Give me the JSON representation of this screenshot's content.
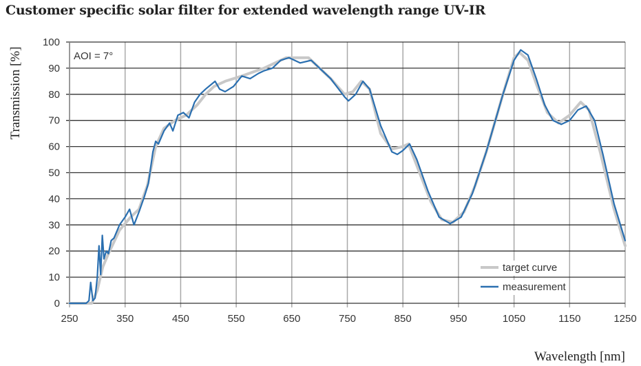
{
  "chart_data": {
    "type": "line",
    "title": "Customer specific solar filter for extended wavelength range UV-IR",
    "xlabel": "Wavelength [nm]",
    "ylabel": "Transmission [%]",
    "annotation": "AOI = 7°",
    "xlim": [
      250,
      1250
    ],
    "ylim": [
      0,
      100
    ],
    "xticks": [
      250,
      350,
      450,
      550,
      650,
      750,
      850,
      950,
      1050,
      1150,
      1250
    ],
    "yticks": [
      0,
      10,
      20,
      30,
      40,
      50,
      60,
      70,
      80,
      90,
      100
    ],
    "grid": true,
    "legend_position": "bottom-right",
    "series": [
      {
        "name": "target curve",
        "color": "#c8c8c8",
        "points": [
          [
            250,
            0
          ],
          [
            290,
            0
          ],
          [
            300,
            5
          ],
          [
            310,
            14
          ],
          [
            320,
            19
          ],
          [
            340,
            28
          ],
          [
            360,
            33
          ],
          [
            375,
            36
          ],
          [
            390,
            45
          ],
          [
            405,
            60
          ],
          [
            420,
            67
          ],
          [
            440,
            70
          ],
          [
            460,
            72
          ],
          [
            480,
            76
          ],
          [
            495,
            80
          ],
          [
            510,
            83
          ],
          [
            530,
            85
          ],
          [
            560,
            87
          ],
          [
            600,
            90
          ],
          [
            640,
            94
          ],
          [
            680,
            94
          ],
          [
            720,
            86
          ],
          [
            745,
            80
          ],
          [
            760,
            81
          ],
          [
            775,
            85
          ],
          [
            790,
            82
          ],
          [
            810,
            65
          ],
          [
            830,
            59
          ],
          [
            850,
            60
          ],
          [
            860,
            61
          ],
          [
            880,
            50
          ],
          [
            900,
            39
          ],
          [
            920,
            32
          ],
          [
            940,
            31
          ],
          [
            960,
            35
          ],
          [
            980,
            45
          ],
          [
            1000,
            58
          ],
          [
            1030,
            80
          ],
          [
            1050,
            94
          ],
          [
            1060,
            96
          ],
          [
            1075,
            93
          ],
          [
            1090,
            84
          ],
          [
            1110,
            73
          ],
          [
            1130,
            69
          ],
          [
            1150,
            72
          ],
          [
            1170,
            77
          ],
          [
            1185,
            74
          ],
          [
            1205,
            58
          ],
          [
            1230,
            36
          ],
          [
            1250,
            22
          ]
        ]
      },
      {
        "name": "measurement",
        "color": "#2a6fb0",
        "points": [
          [
            250,
            0
          ],
          [
            280,
            0
          ],
          [
            285,
            1
          ],
          [
            288,
            8
          ],
          [
            292,
            1
          ],
          [
            296,
            2
          ],
          [
            300,
            10
          ],
          [
            303,
            22
          ],
          [
            306,
            11
          ],
          [
            309,
            26
          ],
          [
            312,
            17
          ],
          [
            316,
            20
          ],
          [
            320,
            19
          ],
          [
            325,
            24
          ],
          [
            330,
            25
          ],
          [
            340,
            30
          ],
          [
            350,
            33
          ],
          [
            358,
            36
          ],
          [
            366,
            30
          ],
          [
            375,
            35
          ],
          [
            385,
            41
          ],
          [
            392,
            46
          ],
          [
            400,
            58
          ],
          [
            405,
            62
          ],
          [
            410,
            61
          ],
          [
            420,
            66
          ],
          [
            430,
            69
          ],
          [
            436,
            66
          ],
          [
            445,
            72
          ],
          [
            455,
            73
          ],
          [
            465,
            71
          ],
          [
            475,
            77
          ],
          [
            485,
            80
          ],
          [
            495,
            82
          ],
          [
            512,
            85
          ],
          [
            520,
            82
          ],
          [
            530,
            81
          ],
          [
            545,
            83
          ],
          [
            560,
            87
          ],
          [
            575,
            86
          ],
          [
            590,
            88
          ],
          [
            600,
            89
          ],
          [
            615,
            90
          ],
          [
            630,
            93
          ],
          [
            645,
            94
          ],
          [
            665,
            92
          ],
          [
            685,
            93
          ],
          [
            700,
            90
          ],
          [
            720,
            86
          ],
          [
            745,
            79
          ],
          [
            752,
            77.5
          ],
          [
            765,
            80
          ],
          [
            778,
            85
          ],
          [
            790,
            82
          ],
          [
            810,
            68
          ],
          [
            830,
            58
          ],
          [
            840,
            57
          ],
          [
            850,
            58.5
          ],
          [
            862,
            61
          ],
          [
            875,
            55
          ],
          [
            895,
            43
          ],
          [
            915,
            33
          ],
          [
            935,
            30.5
          ],
          [
            955,
            33
          ],
          [
            975,
            42
          ],
          [
            1000,
            58
          ],
          [
            1030,
            80
          ],
          [
            1050,
            93
          ],
          [
            1062,
            97
          ],
          [
            1075,
            95
          ],
          [
            1090,
            86
          ],
          [
            1105,
            76
          ],
          [
            1120,
            70
          ],
          [
            1135,
            68.5
          ],
          [
            1150,
            70
          ],
          [
            1165,
            74
          ],
          [
            1180,
            75.5
          ],
          [
            1195,
            70
          ],
          [
            1210,
            57
          ],
          [
            1230,
            38
          ],
          [
            1250,
            24
          ]
        ]
      }
    ]
  }
}
